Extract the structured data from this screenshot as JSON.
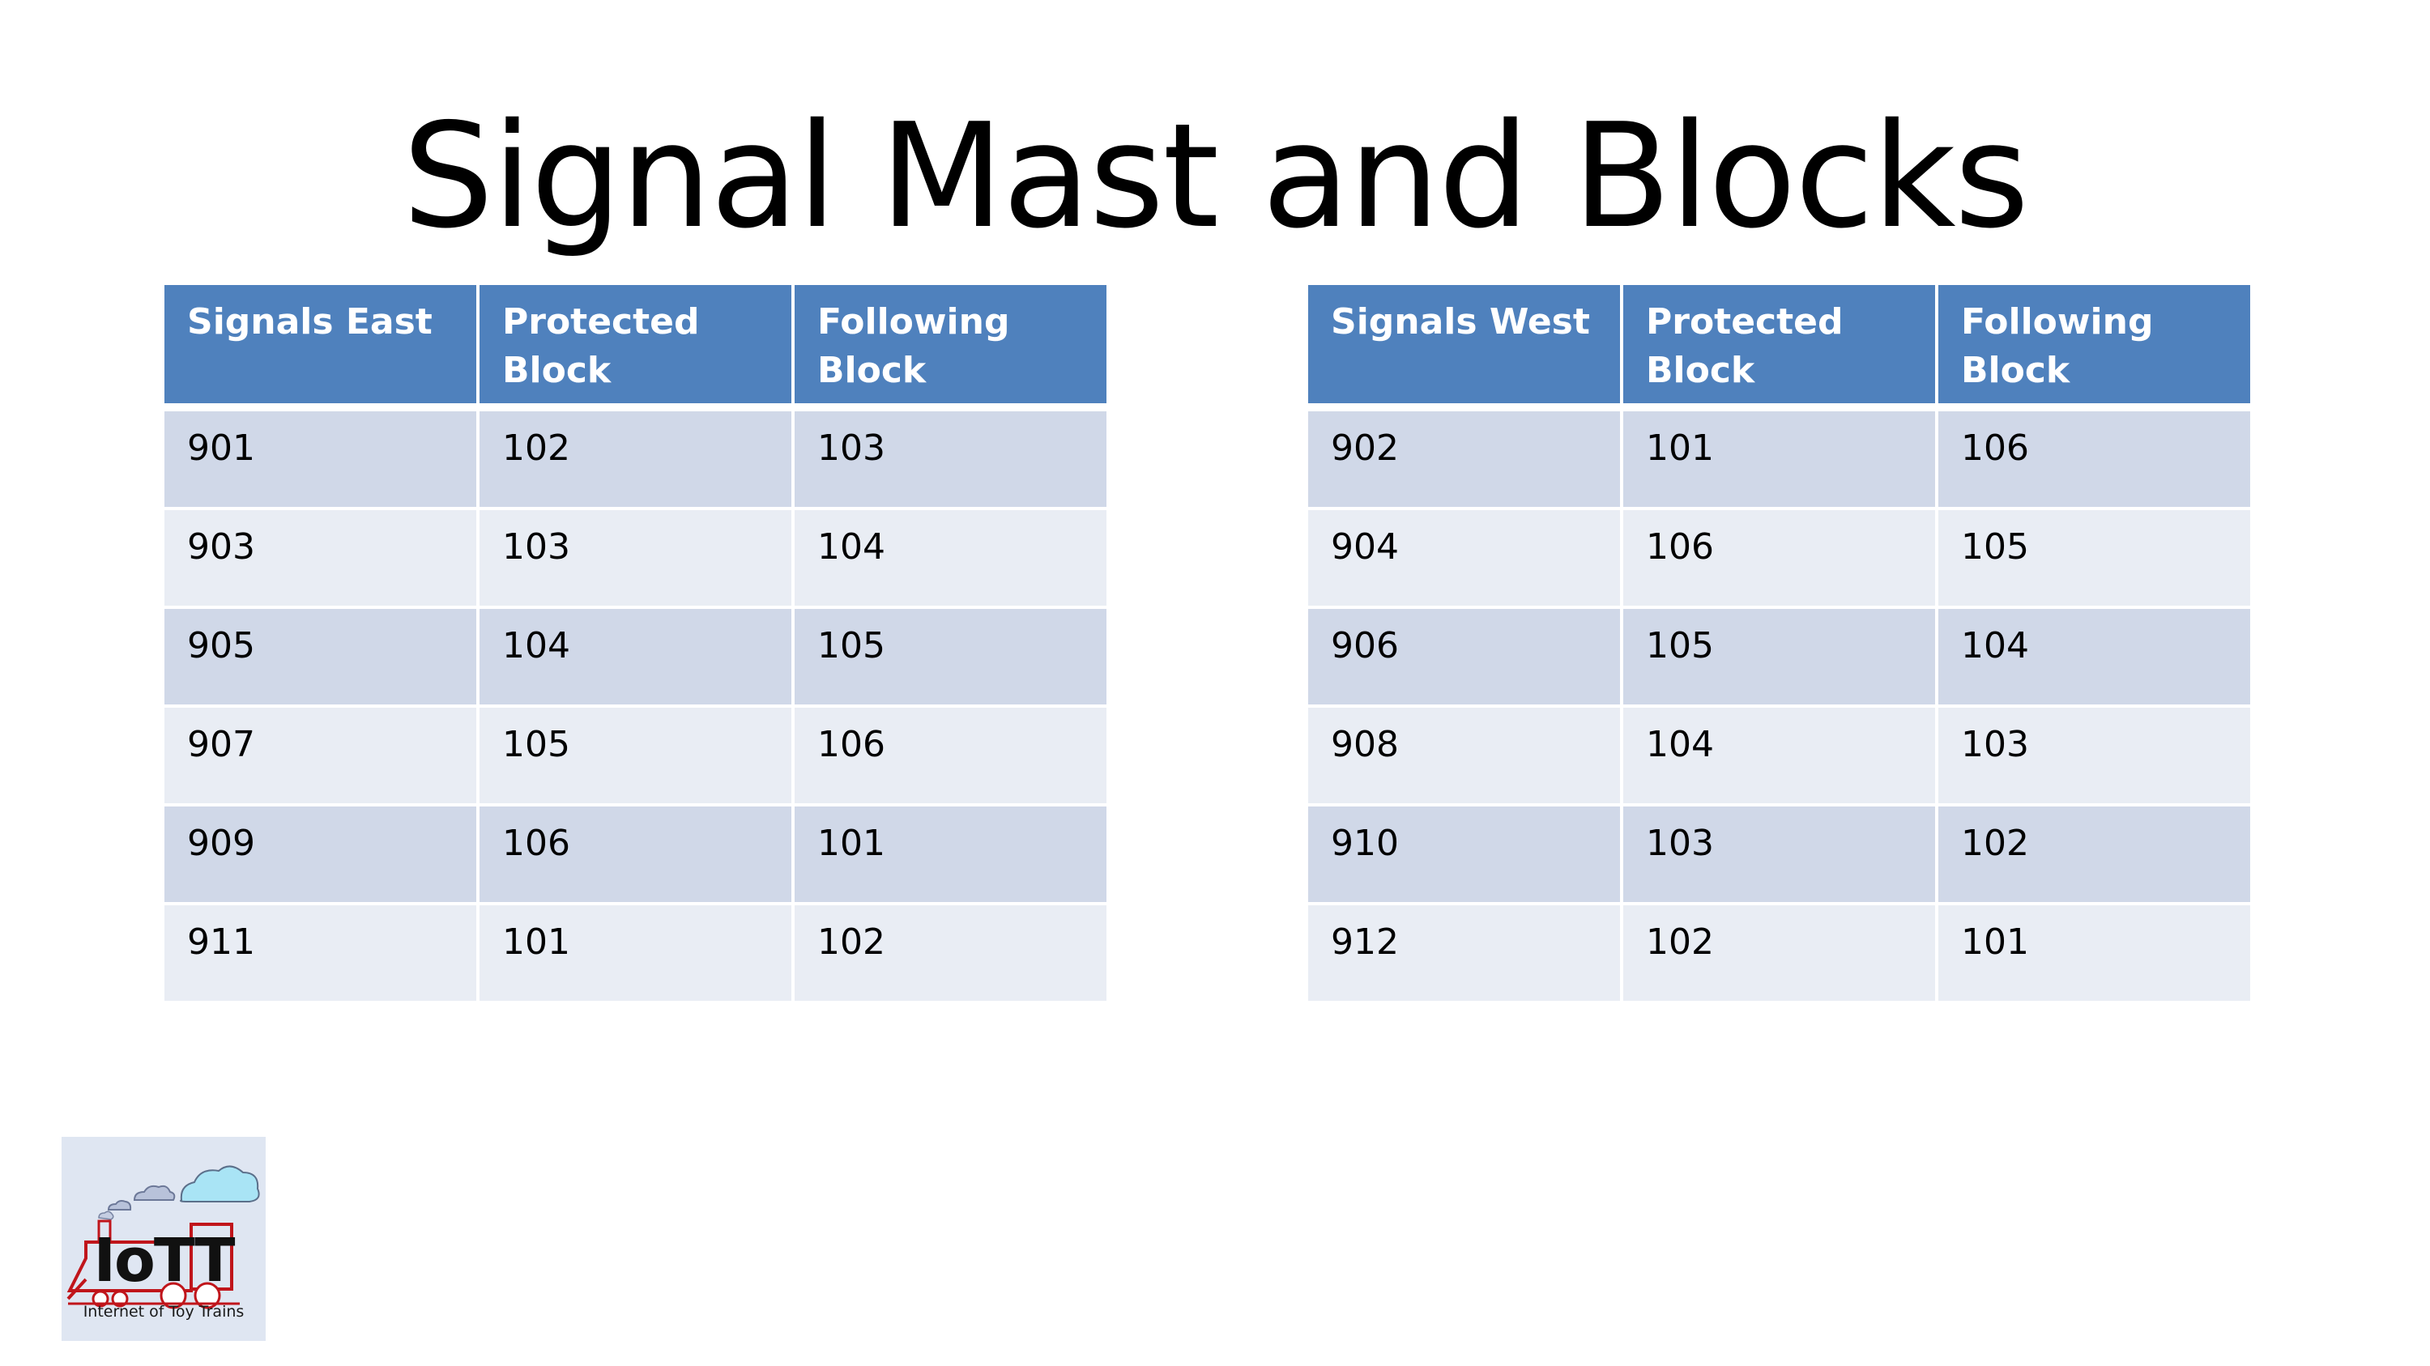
{
  "slide": {
    "title": "Signal Mast and Blocks"
  },
  "east_table": {
    "headers": [
      "Signals East",
      "Protected Block",
      "Following Block"
    ],
    "rows": [
      [
        "901",
        "102",
        "103"
      ],
      [
        "903",
        "103",
        "104"
      ],
      [
        "905",
        "104",
        "105"
      ],
      [
        "907",
        "105",
        "106"
      ],
      [
        "909",
        "106",
        "101"
      ],
      [
        "911",
        "101",
        "102"
      ]
    ]
  },
  "west_table": {
    "headers": [
      "Signals West",
      "Protected Block",
      "Following Block"
    ],
    "rows": [
      [
        "902",
        "101",
        "106"
      ],
      [
        "904",
        "106",
        "105"
      ],
      [
        "906",
        "105",
        "104"
      ],
      [
        "908",
        "104",
        "103"
      ],
      [
        "910",
        "103",
        "102"
      ],
      [
        "912",
        "102",
        "101"
      ]
    ]
  },
  "logo": {
    "brand": "IoTT",
    "tagline": "Internet of Toy Trains",
    "icon": "toy-train-logo-icon"
  },
  "colors": {
    "header_bg": "#4f81bd",
    "row_odd": "#d0d8e8",
    "row_even": "#e9edf4",
    "logo_bg": "#dfe6f2",
    "logo_red": "#c0151b",
    "cloud_blue": "#a9e4f5"
  }
}
